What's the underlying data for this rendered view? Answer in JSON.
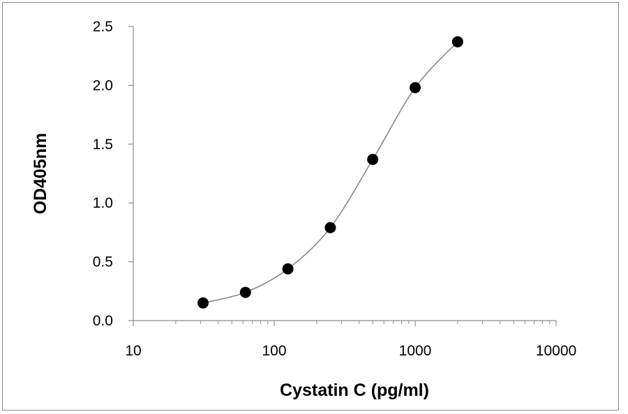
{
  "chart_data": {
    "type": "scatter",
    "title": "",
    "xlabel": "Cystatin C (pg/ml)",
    "ylabel": "OD405nm",
    "x_scale": "log",
    "xlim": [
      10,
      10000
    ],
    "ylim": [
      0,
      2.5
    ],
    "x_ticks": [
      "10",
      "100",
      "1000",
      "10000"
    ],
    "y_ticks": [
      "0.0",
      "0.5",
      "1.0",
      "1.5",
      "2.0",
      "2.5"
    ],
    "grid": false,
    "legend": "none",
    "marker_color": "#000000",
    "curve_color": "#808080",
    "series": [
      {
        "x": [
          31.25,
          62.5,
          125,
          250,
          500,
          1000,
          2000
        ],
        "y": [
          0.15,
          0.24,
          0.44,
          0.79,
          1.37,
          1.98,
          2.37
        ]
      }
    ]
  }
}
